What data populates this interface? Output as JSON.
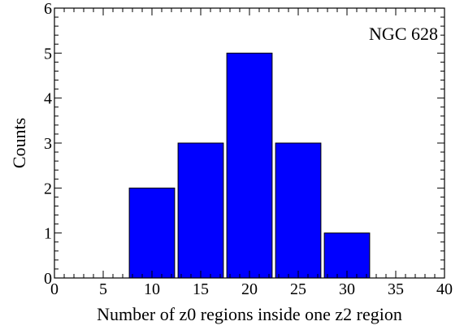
{
  "chart_data": {
    "type": "bar",
    "categories": [
      "10",
      "15",
      "20",
      "25",
      "30"
    ],
    "x": [
      10,
      15,
      20,
      25,
      30
    ],
    "values": [
      2,
      3,
      5,
      3,
      1
    ],
    "bin_width": 5,
    "title": "",
    "annotation": "NGC 628",
    "xlabel": "Number of z0 regions inside one z2 region",
    "ylabel": "Counts",
    "xlim": [
      0,
      40
    ],
    "ylim": [
      0,
      6
    ],
    "x_ticks": [
      0,
      5,
      10,
      15,
      20,
      25,
      30,
      35,
      40
    ],
    "y_ticks": [
      0,
      1,
      2,
      3,
      4,
      5,
      6
    ],
    "grid": false,
    "legend": "none",
    "bar_color": "#0000ff",
    "axis_color": "#000000"
  }
}
